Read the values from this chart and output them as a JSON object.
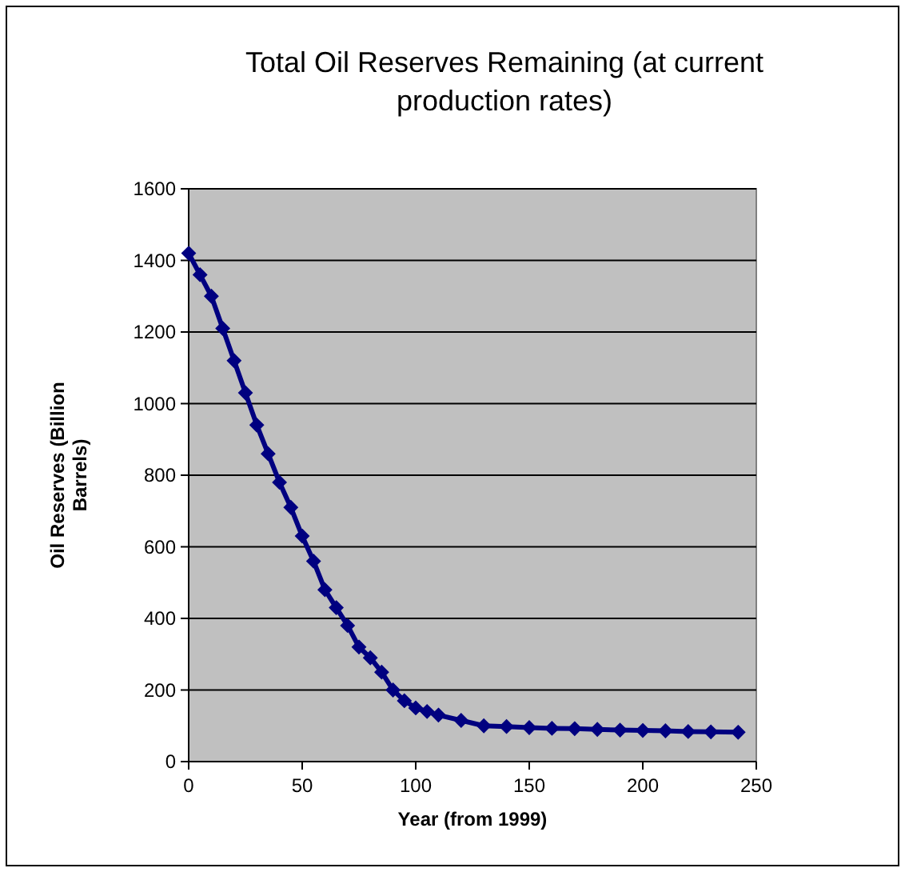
{
  "chart_data": {
    "type": "line",
    "title": "Total Oil Reserves Remaining (at current production rates)",
    "xlabel": "Year (from 1999)",
    "ylabel": "Oil Reserves (Billion Barrels)",
    "x": [
      0,
      5,
      10,
      15,
      20,
      25,
      30,
      35,
      40,
      45,
      50,
      55,
      60,
      65,
      70,
      75,
      80,
      85,
      90,
      95,
      100,
      105,
      110,
      120,
      130,
      140,
      150,
      160,
      170,
      180,
      190,
      200,
      210,
      220,
      230,
      242
    ],
    "series": [
      {
        "color": "#000080",
        "values": [
          1420,
          1360,
          1300,
          1210,
          1120,
          1030,
          940,
          860,
          780,
          710,
          630,
          560,
          480,
          430,
          380,
          320,
          290,
          250,
          200,
          170,
          150,
          140,
          130,
          115,
          100,
          98,
          95,
          93,
          92,
          90,
          88,
          87,
          86,
          84,
          83,
          82
        ]
      }
    ],
    "xlim": [
      0,
      250
    ],
    "xticks": [
      0,
      50,
      100,
      150,
      200,
      250
    ],
    "ylim": [
      0,
      1600
    ],
    "yticks": [
      0,
      200,
      400,
      600,
      800,
      1000,
      1200,
      1400,
      1600
    ],
    "grid": "y",
    "marker": "diamond",
    "line_style": "solid"
  }
}
